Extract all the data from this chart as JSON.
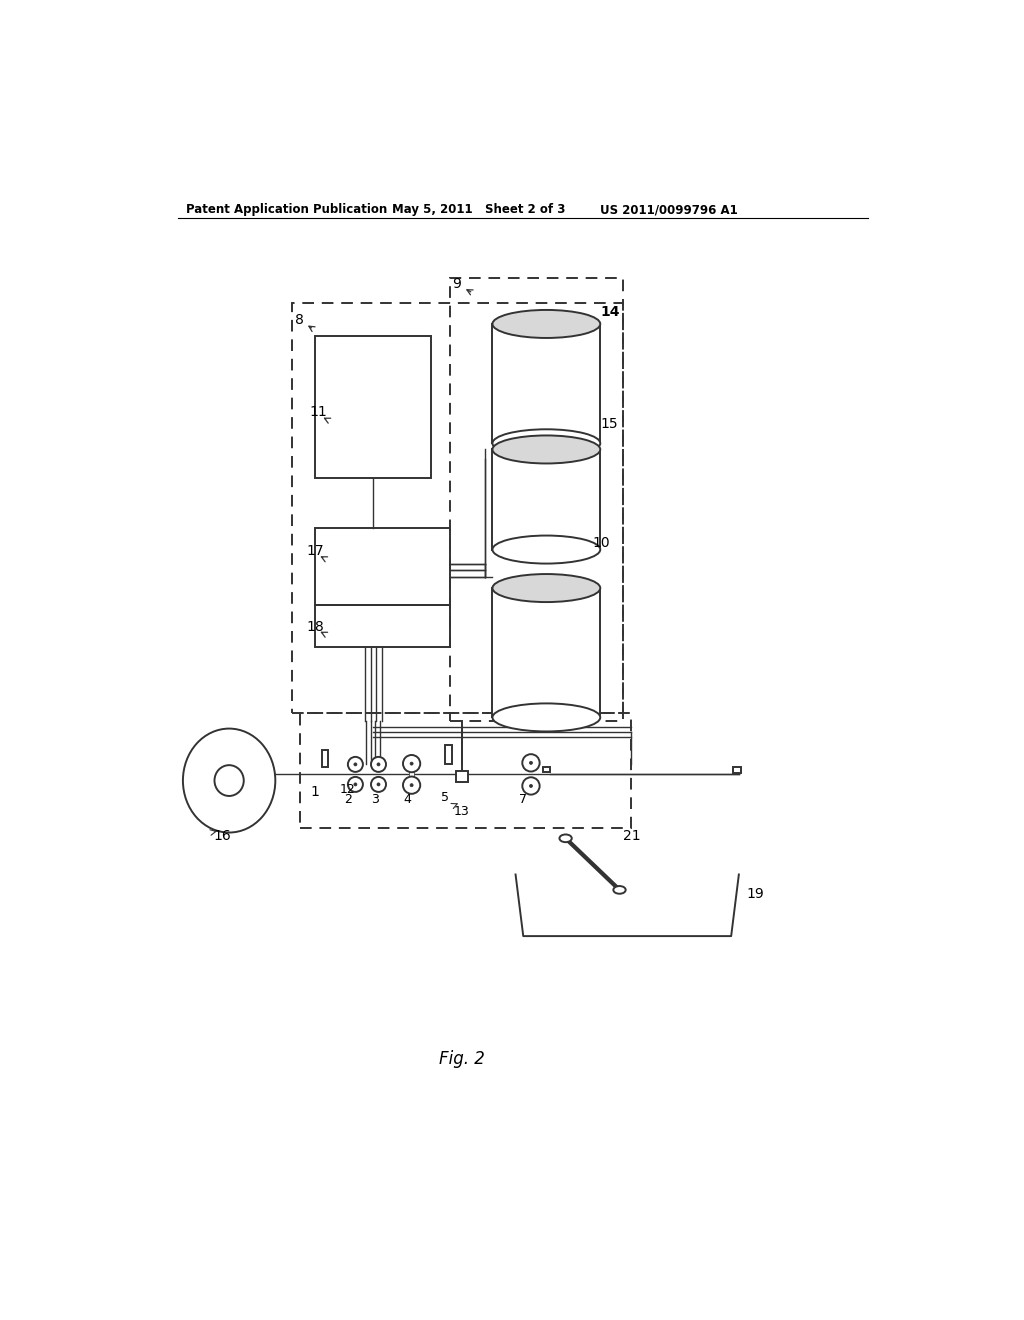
{
  "bg_color": "#ffffff",
  "header_left": "Patent Application Publication",
  "header_mid": "May 5, 2011   Sheet 2 of 3",
  "header_right": "US 2011/0099796 A1",
  "fig_label": "Fig. 2",
  "lc": "#333333",
  "lw": 1.4,
  "lw_thin": 1.0
}
